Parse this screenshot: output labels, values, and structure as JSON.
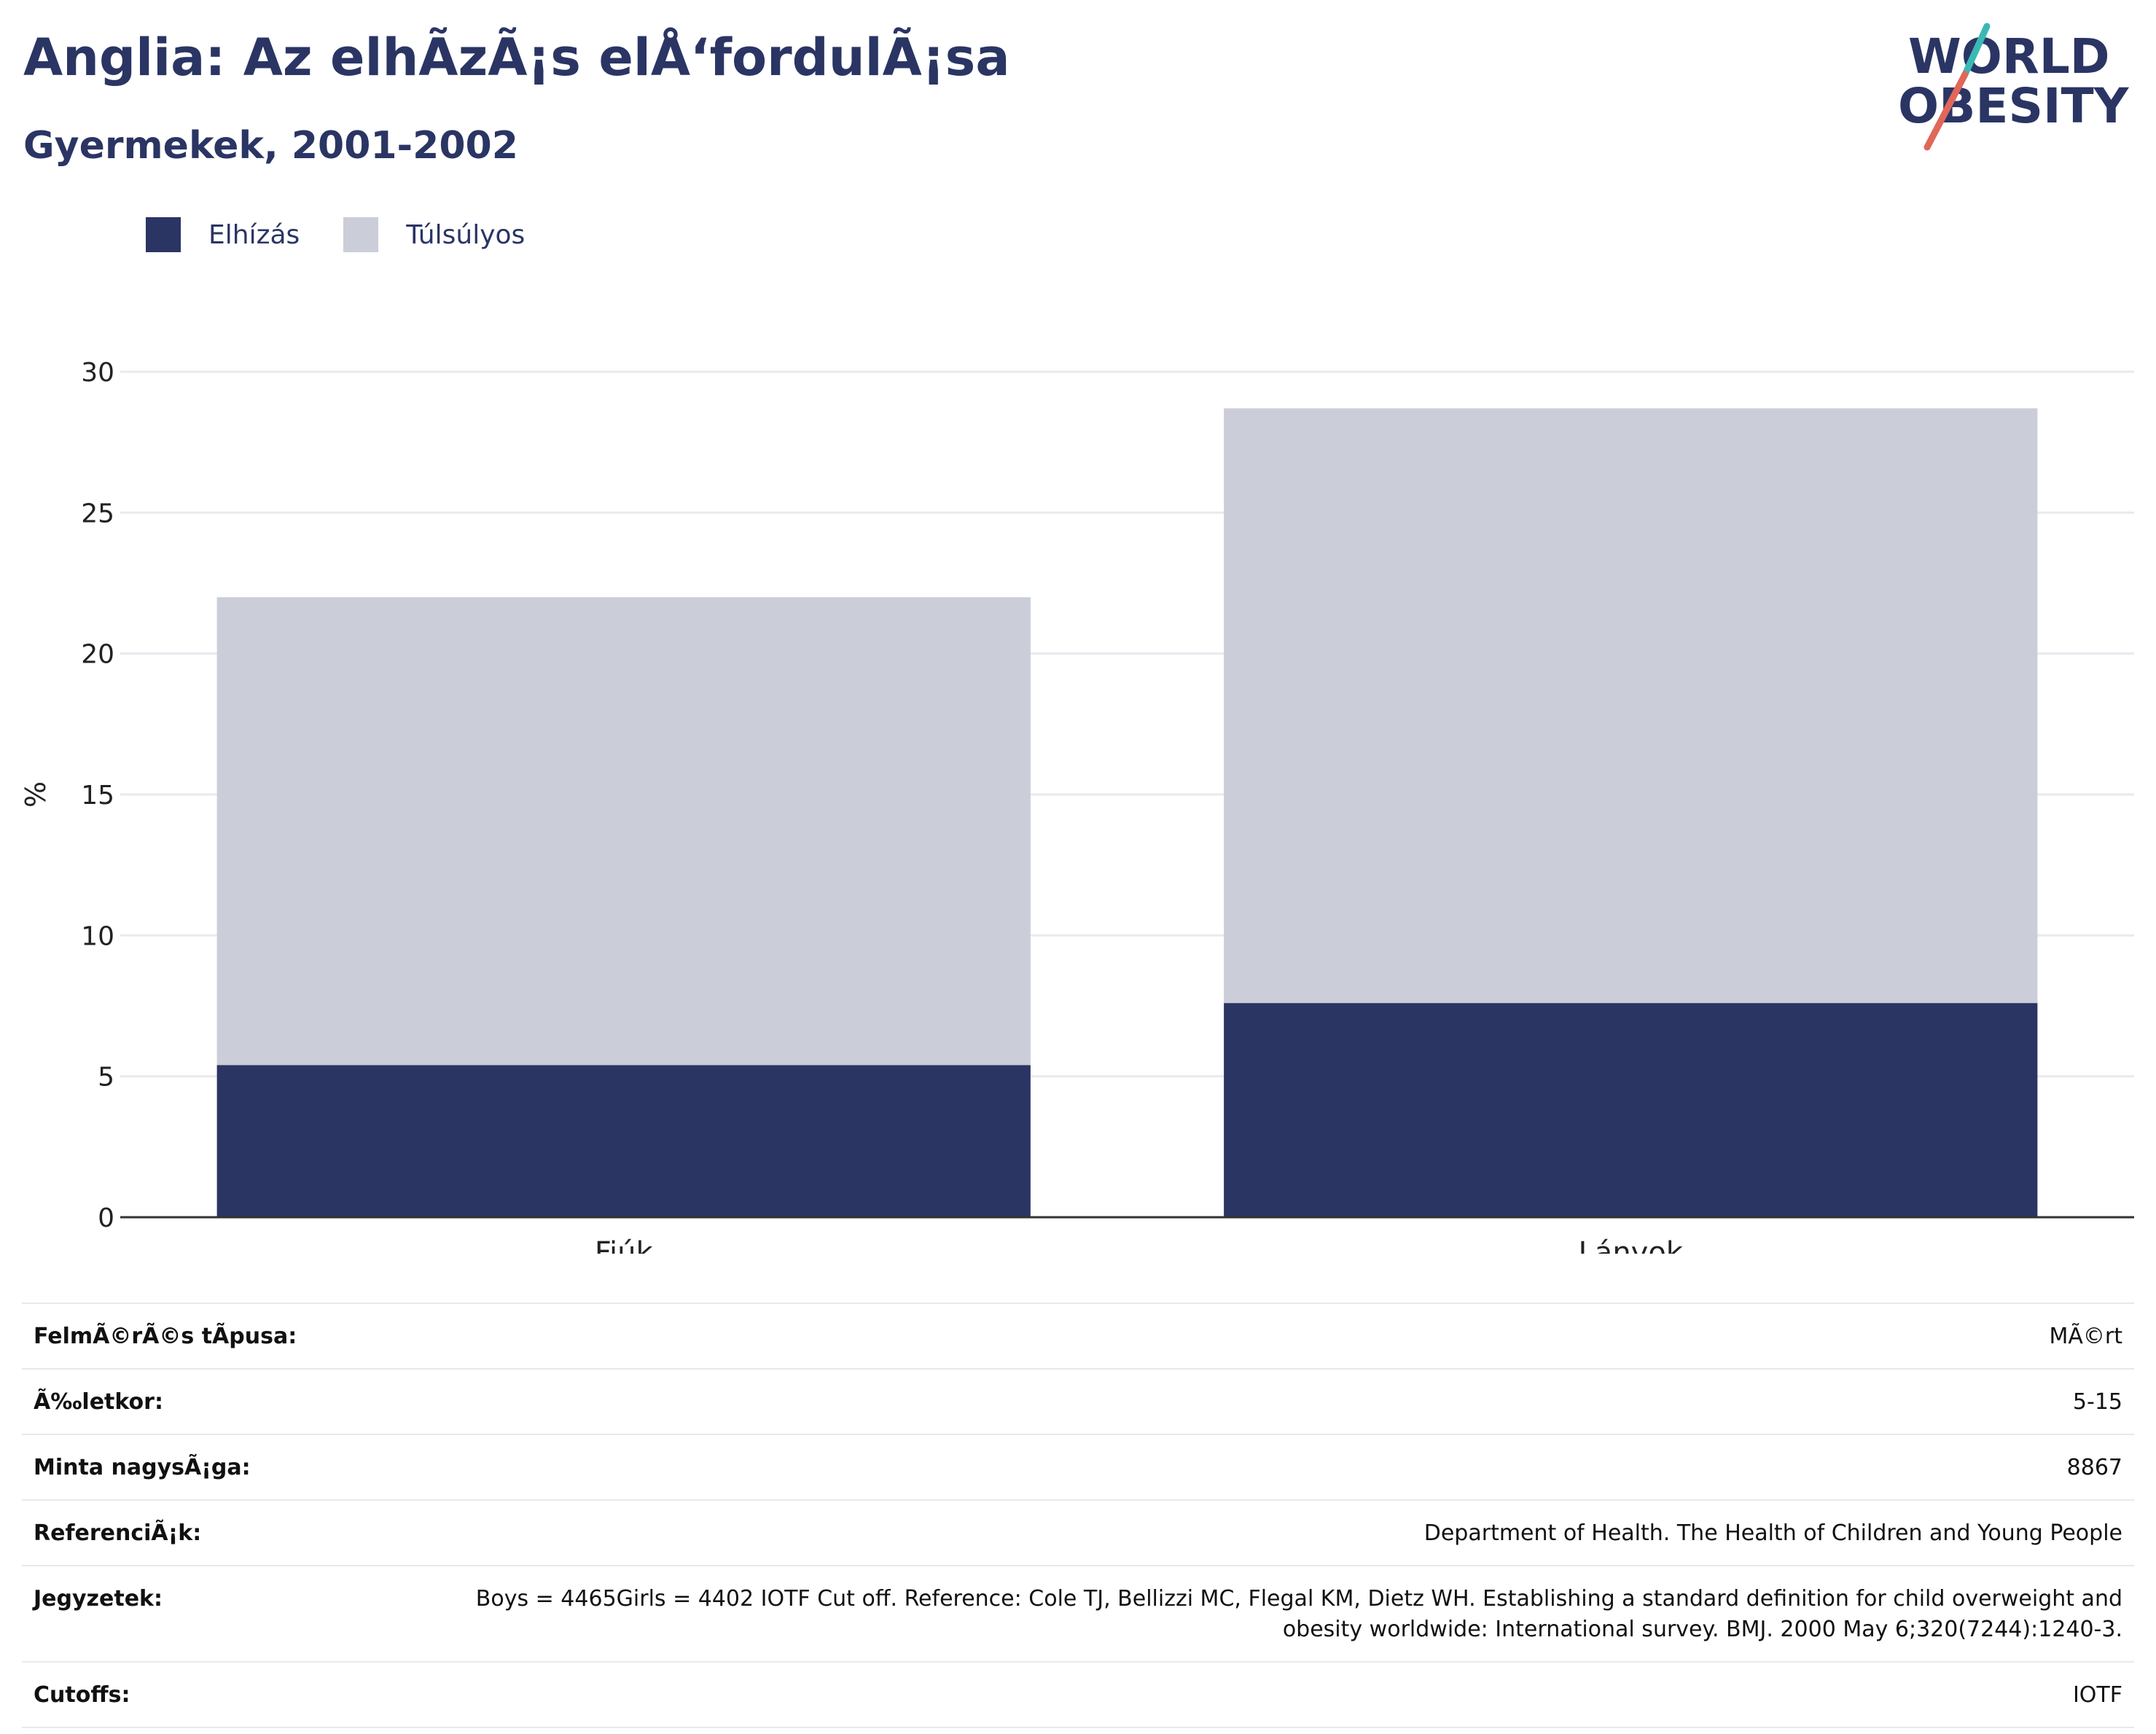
{
  "header": {
    "title": "Anglia: Az elhÃzÃ¡s elÅ‘fordulÃ¡sa",
    "subtitle": "Gyermekek, 2001-2002"
  },
  "logo": {
    "line1": "WORLD",
    "line2": "OBESITY"
  },
  "legend": [
    {
      "label": "Elhízás",
      "color": "#2a3564"
    },
    {
      "label": "Túlsúlyos",
      "color": "#cbcdd8"
    }
  ],
  "chart_data": {
    "type": "bar",
    "stacked": true,
    "categories": [
      "Fiúk",
      "Lányok"
    ],
    "series": [
      {
        "name": "Elhízás",
        "values": [
          5.4,
          7.6
        ],
        "color": "#2a3564"
      },
      {
        "name": "Túlsúlyos",
        "values": [
          16.6,
          21.1
        ],
        "color": "#cbcdd8"
      }
    ],
    "ylabel": "%",
    "ylim": [
      0,
      30
    ],
    "yticks": [
      0,
      5,
      10,
      15,
      20,
      25,
      30
    ],
    "grid": true,
    "legend_position": "top-left"
  },
  "meta": [
    {
      "key": "FelmÃ©rÃ©s tÃpusa:",
      "value": "MÃ©rt"
    },
    {
      "key": "Ã‰letkor:",
      "value": "5-15"
    },
    {
      "key": "Minta nagysÃ¡ga:",
      "value": "8867"
    },
    {
      "key": "ReferenciÃ¡k:",
      "value": "Department of Health. The Health of Children and Young People"
    },
    {
      "key": "Jegyzetek:",
      "value": "Boys = 4465Girls = 4402 IOTF Cut off. Reference: Cole TJ, Bellizzi MC, Flegal KM, Dietz WH. Establishing a standard definition for child overweight and obesity worldwide: International survey. BMJ. 2000 May 6;320(7244):1240-3."
    },
    {
      "key": "Cutoffs:",
      "value": "IOTF"
    }
  ]
}
